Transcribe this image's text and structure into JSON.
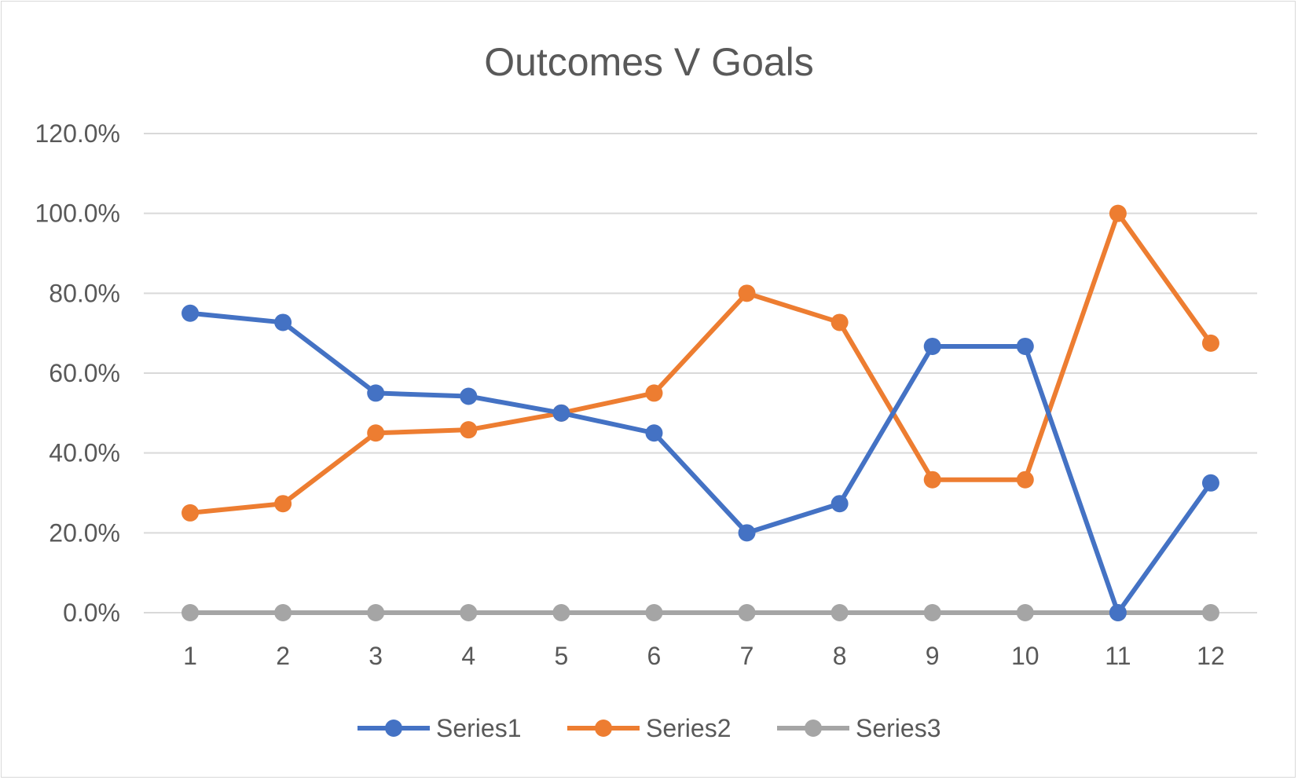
{
  "chart_data": {
    "type": "line",
    "title": "Outcomes V Goals",
    "xlabel": "",
    "ylabel": "",
    "categories": [
      "1",
      "2",
      "3",
      "4",
      "5",
      "6",
      "7",
      "8",
      "9",
      "10",
      "11",
      "12"
    ],
    "ylim": [
      0,
      1.2
    ],
    "y_ticks": [
      0,
      0.2,
      0.4,
      0.6,
      0.8,
      1.0,
      1.2
    ],
    "y_tick_labels": [
      "0.0%",
      "20.0%",
      "40.0%",
      "60.0%",
      "80.0%",
      "100.0%",
      "120.0%"
    ],
    "grid": true,
    "legend_position": "bottom",
    "series": [
      {
        "name": "Series1",
        "color": "#4472c4",
        "values": [
          0.75,
          0.727,
          0.55,
          0.542,
          0.5,
          0.45,
          0.2,
          0.273,
          0.667,
          0.667,
          0.0,
          0.325
        ]
      },
      {
        "name": "Series2",
        "color": "#ed7d31",
        "values": [
          0.25,
          0.273,
          0.45,
          0.458,
          0.5,
          0.55,
          0.8,
          0.727,
          0.333,
          0.333,
          1.0,
          0.675
        ]
      },
      {
        "name": "Series3",
        "color": "#a5a5a5",
        "values": [
          0,
          0,
          0,
          0,
          0,
          0,
          0,
          0,
          0,
          0,
          0,
          0
        ]
      }
    ]
  }
}
